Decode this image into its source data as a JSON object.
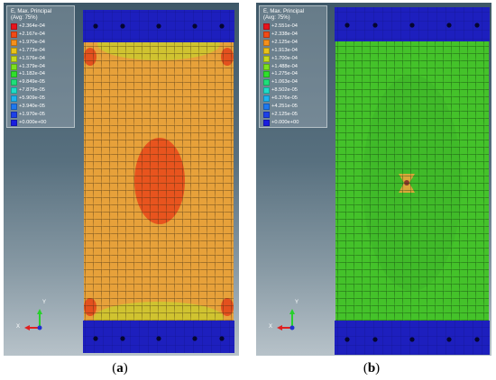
{
  "panels": [
    {
      "id": "a",
      "caption": "a",
      "legend": {
        "title": "E, Max. Principal",
        "subtitle": "(Avg: 75%)",
        "entries": [
          {
            "value": "+2.364e-04",
            "color": "#e8141c"
          },
          {
            "value": "+2.167e-04",
            "color": "#f24a16"
          },
          {
            "value": "+1.970e-04",
            "color": "#f5901c"
          },
          {
            "value": "+1.773e-04",
            "color": "#e9c21a"
          },
          {
            "value": "+1.576e-04",
            "color": "#c4d91e"
          },
          {
            "value": "+1.379e-04",
            "color": "#7be11e"
          },
          {
            "value": "+1.182e-04",
            "color": "#2fe12b"
          },
          {
            "value": "+9.849e-05",
            "color": "#1fdf7a"
          },
          {
            "value": "+7.879e-05",
            "color": "#1fdcc7"
          },
          {
            "value": "+5.909e-05",
            "color": "#1fb2ee"
          },
          {
            "value": "+3.940e-05",
            "color": "#1f78ef"
          },
          {
            "value": "+1.970e-05",
            "color": "#1d40e8"
          },
          {
            "value": "+0.000e+00",
            "color": "#1a1ee0"
          }
        ]
      },
      "body_color": "#e7a13a",
      "hotspot_color": "#e8541e",
      "triad": {
        "x": "X",
        "y": "Y"
      }
    },
    {
      "id": "b",
      "caption": "b",
      "legend": {
        "title": "E, Max. Principal",
        "subtitle": "(Avg: 75%)",
        "entries": [
          {
            "value": "+2.551e-04",
            "color": "#e8141c"
          },
          {
            "value": "+2.338e-04",
            "color": "#f24a16"
          },
          {
            "value": "+2.125e-04",
            "color": "#f5901c"
          },
          {
            "value": "+1.913e-04",
            "color": "#e9c21a"
          },
          {
            "value": "+1.700e-04",
            "color": "#c4d91e"
          },
          {
            "value": "+1.488e-04",
            "color": "#7be11e"
          },
          {
            "value": "+1.275e-04",
            "color": "#2fe12b"
          },
          {
            "value": "+1.063e-04",
            "color": "#1fdf7a"
          },
          {
            "value": "+8.502e-05",
            "color": "#1fdcc7"
          },
          {
            "value": "+6.376e-05",
            "color": "#1fb2ee"
          },
          {
            "value": "+4.251e-05",
            "color": "#1f78ef"
          },
          {
            "value": "+2.125e-05",
            "color": "#1d40e8"
          },
          {
            "value": "+0.000e+00",
            "color": "#1a1ee0"
          }
        ]
      },
      "body_color": "#44c22a",
      "hotspot_color": "#d9a83a",
      "triad": {
        "x": "X",
        "y": "Y"
      }
    }
  ]
}
